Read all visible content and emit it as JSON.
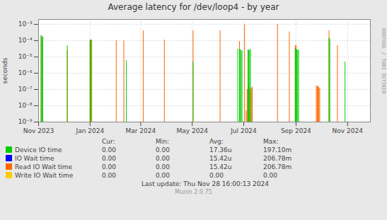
{
  "chart_data": {
    "type": "bar",
    "title": "Average latency for /dev/loop4 - by year",
    "ylabel": "seconds",
    "log": "y",
    "grid": true,
    "xlim": [
      1698796800,
      1732752000
    ],
    "xticks": [
      {
        "value": 1698796800,
        "label": "Nov 2023"
      },
      {
        "value": 1704067200,
        "label": "Jan 2024"
      },
      {
        "value": 1709251200,
        "label": "Mar 2024"
      },
      {
        "value": 1714521600,
        "label": "May 2024"
      },
      {
        "value": 1719792000,
        "label": "Jul 2024"
      },
      {
        "value": 1725148800,
        "label": "Sep 2024"
      },
      {
        "value": 1730419200,
        "label": "Nov 2024"
      }
    ],
    "ylim": [
      1e-09,
      0.002
    ],
    "yticks": [
      {
        "value": 1e-09,
        "label": "10⁻⁹"
      },
      {
        "value": 1e-08,
        "label": "10⁻⁸"
      },
      {
        "value": 1e-07,
        "label": "10⁻⁷"
      },
      {
        "value": 1e-06,
        "label": "10⁻⁶"
      },
      {
        "value": 1e-05,
        "label": "10⁻⁵"
      },
      {
        "value": 0.0001,
        "label": "10⁻⁴"
      },
      {
        "value": 0.001,
        "label": "10⁻³"
      }
    ],
    "series": [
      {
        "name": "Device IO time",
        "color": "#00cc00",
        "stats": [
          "0.00",
          "0.00",
          "17.36u",
          "197.10m"
        ],
        "x": [
          1699056000,
          1699142400,
          1699228800,
          1701734400,
          1704067200,
          1704153600,
          1707782400,
          1714608000,
          1719187200,
          1719360000,
          1719446400,
          1719532800,
          1719619200,
          1720224000,
          1720310400,
          1720396800,
          1720483200,
          1725062400,
          1725148800,
          1725235200,
          1725321600,
          1725408000,
          1728518400,
          1728604800,
          1730160000
        ],
        "values": [
          0.00021,
          0.00017,
          0.00017,
          5e-05,
          0.00011,
          0.00011,
          6e-06,
          5e-06,
          3e-05,
          3e-05,
          2.8e-05,
          2.5e-05,
          2.4e-05,
          2.7e-05,
          2.6e-05,
          2.5e-05,
          3e-05,
          3.2e-05,
          3e-05,
          2.8e-05,
          2.6e-05,
          2.6e-05,
          0.00015,
          0.00012,
          5e-06
        ]
      },
      {
        "name": "IO Wait time",
        "color": "#0000ff",
        "stats": [
          "0.00",
          "0.00",
          "15.42u",
          "206.78m"
        ],
        "x": [],
        "values": []
      },
      {
        "name": "Read IO Wait time",
        "color": "#ff6600",
        "stats": [
          "0.00",
          "0.00",
          "15.42u",
          "206.78m"
        ],
        "x": [
          1699056000,
          1699228800,
          1701734400,
          1704067200,
          1704240000,
          1706745600,
          1707523200,
          1709510400,
          1711670400,
          1714608000,
          1717372800,
          1719360000,
          1719878400,
          1720051200,
          1720137600,
          1720224000,
          1720310400,
          1720396800,
          1720483200,
          1720569600,
          1720656000,
          1723248000,
          1724457600,
          1725062400,
          1725148800,
          1727222400,
          1727308800,
          1727395200,
          1727481600,
          1727568000,
          1728518400,
          1729382400
        ],
        "values": [
          0.0002,
          0.00016,
          2.5e-05,
          9e-05,
          0.00011,
          0.0001,
          0.0001,
          0.0004,
          0.00011,
          0.0004,
          0.0004,
          9e-05,
          0.001,
          5e-09,
          1e-07,
          2e-07,
          1.5e-07,
          1.2e-07,
          9e-08,
          1.2e-07,
          1.4e-07,
          0.001,
          0.00035,
          5e-05,
          5e-05,
          1.7e-07,
          1.6e-07,
          1.5e-07,
          1.3e-07,
          1.2e-07,
          0.0004,
          5e-05
        ]
      },
      {
        "name": "Write IO Wait time",
        "color": "#ffcc00",
        "stats": [
          "0.00",
          "0.00",
          "0.00",
          "0.00"
        ],
        "x": [],
        "values": []
      }
    ],
    "legend_table": {
      "headers": [
        "Cur:",
        "Min:",
        "Avg:",
        "Max:"
      ]
    },
    "last_update": "Last update: Thu Nov 28 16:00:13 2024",
    "footer": "Munin 2.0.75",
    "watermark": "RRDTOOL / TOBI OETIKER"
  }
}
